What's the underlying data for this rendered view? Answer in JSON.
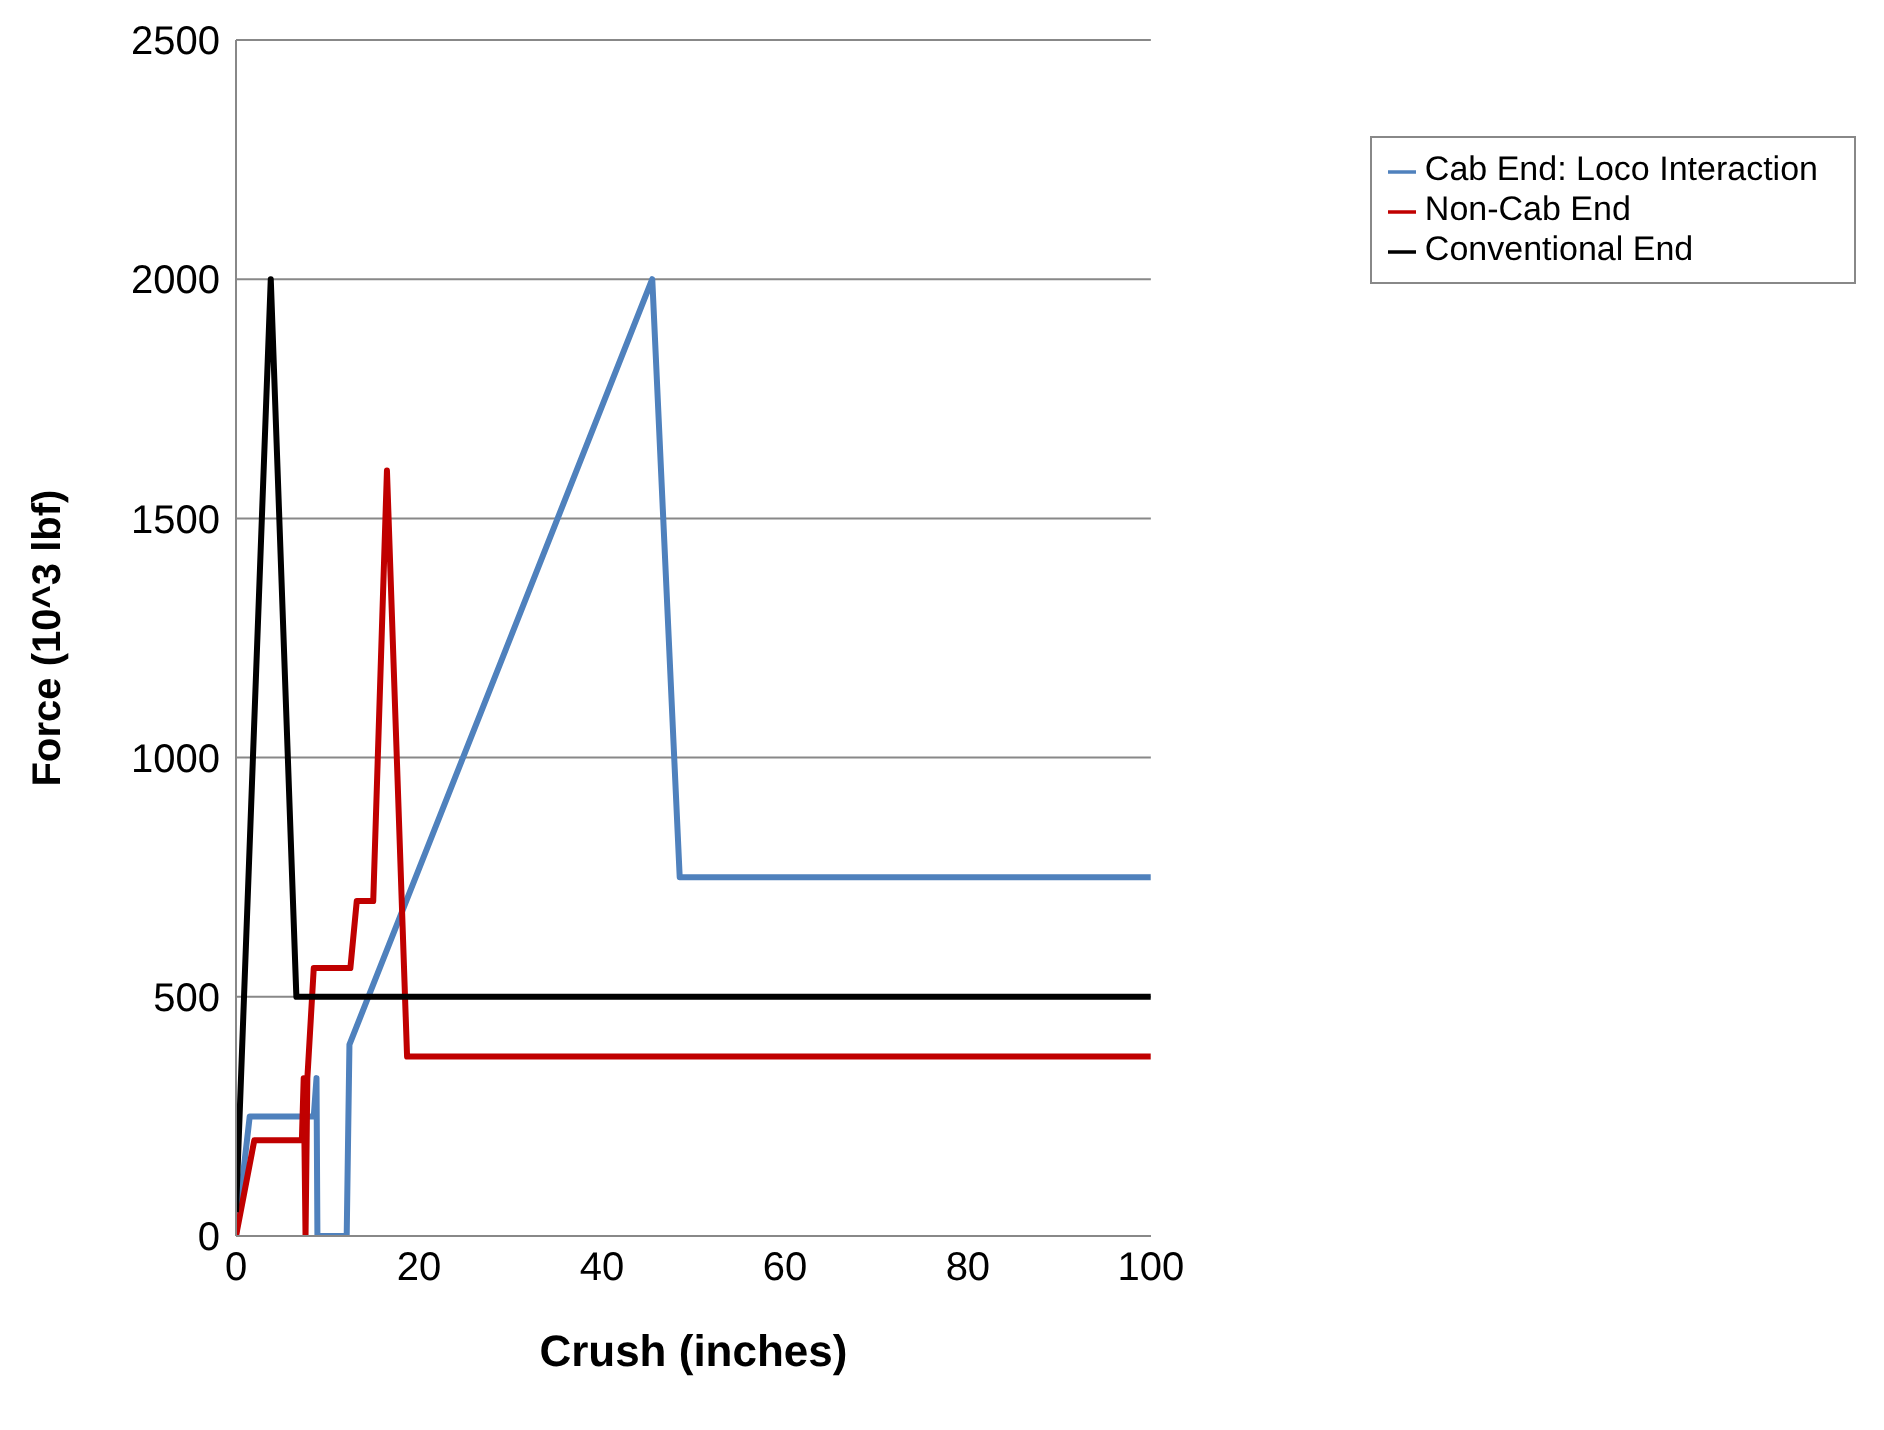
{
  "chart_data": {
    "type": "line",
    "xlabel": "Crush (inches)",
    "ylabel": "Force (10^3 lbf)",
    "xlim": [
      0,
      100
    ],
    "xticks": [
      0,
      20,
      40,
      60,
      80,
      100
    ],
    "ylim": [
      0,
      2500
    ],
    "yticks": [
      0,
      500,
      1000,
      1500,
      2000,
      2500
    ],
    "grid": "y",
    "legend": "top right",
    "marker": "none",
    "line_style": "solid",
    "series": [
      {
        "name": "Cab End: Loco Interaction",
        "color": "#4f81bd",
        "x": [
          0,
          1.5,
          8.5,
          8.8,
          8.9,
          12.1,
          12.4,
          45.5,
          48.5,
          100
        ],
        "values": [
          0,
          250,
          250,
          330,
          0,
          0,
          400,
          2000,
          750,
          750
        ]
      },
      {
        "name": "Non-Cab End",
        "color": "#c00000",
        "x": [
          0,
          2,
          7.2,
          7.4,
          7.6,
          7.8,
          8.5,
          12.5,
          13.2,
          15,
          16.5,
          18.7,
          100
        ],
        "values": [
          0,
          200,
          200,
          330,
          0,
          330,
          560,
          560,
          700,
          700,
          1600,
          375,
          375
        ]
      },
      {
        "name": "Conventional End",
        "color": "#000000",
        "x": [
          0,
          3.8,
          6.6,
          100
        ],
        "values": [
          50,
          2000,
          500,
          500
        ]
      }
    ]
  }
}
